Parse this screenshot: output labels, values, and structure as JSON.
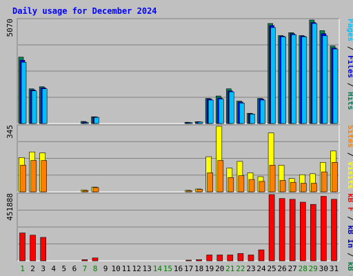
{
  "colors": {
    "outer_bg": "#c0c0c0",
    "panel_bg": "#c0c0c0",
    "title": "#0000ff",
    "hits": "#00805c",
    "files": "#0000ff",
    "pages": "#00c0ff",
    "visits": "#ffff00",
    "sites": "#ff8000",
    "kb_out": "#008040",
    "kb_in": "#0000c0",
    "kb_f": "#ff0000",
    "weekend_label": "#008000",
    "weekday_label": "#000000"
  },
  "chart_data": {
    "type": "bar",
    "title": "Daily usage for December 2024",
    "categories": [
      "1",
      "2",
      "3",
      "4",
      "5",
      "6",
      "7",
      "8",
      "9",
      "10",
      "11",
      "12",
      "13",
      "14",
      "15",
      "16",
      "17",
      "18",
      "19",
      "20",
      "21",
      "22",
      "23",
      "24",
      "25",
      "26",
      "27",
      "28",
      "29",
      "30",
      "31"
    ],
    "weekend_days": [
      "1",
      "7",
      "8",
      "14",
      "15",
      "21",
      "22",
      "28",
      "29"
    ],
    "panels": [
      {
        "id": "top",
        "scale_label": "5070",
        "ylim": [
          0,
          5070
        ],
        "legend": [
          {
            "key": "pages",
            "label": "Pages"
          },
          {
            "key": "sep",
            "label": " / "
          },
          {
            "key": "files",
            "label": "Files"
          },
          {
            "key": "sep",
            "label": " / "
          },
          {
            "key": "hits",
            "label": "Hits"
          }
        ],
        "series": [
          {
            "name": "Hits",
            "key": "hits",
            "values": [
              3250,
              1700,
              1800,
              0,
              0,
              0,
              100,
              330,
              0,
              0,
              0,
              0,
              0,
              0,
              0,
              0,
              60,
              90,
              1230,
              1350,
              1700,
              1100,
              500,
              1230,
              4900,
              4310,
              4450,
              4310,
              5070,
              4550,
              3800
            ]
          },
          {
            "name": "Files",
            "key": "files",
            "values": [
              3100,
              1650,
              1750,
              0,
              0,
              0,
              70,
              320,
              0,
              0,
              0,
              0,
              0,
              0,
              0,
              0,
              50,
              80,
              1200,
              1250,
              1600,
              1050,
              480,
              1200,
              4800,
              4280,
              4400,
              4280,
              4950,
              4400,
              3700
            ]
          },
          {
            "name": "Pages",
            "key": "pages",
            "values": [
              3000,
              1600,
              1700,
              0,
              0,
              0,
              40,
              300,
              0,
              0,
              0,
              0,
              0,
              0,
              0,
              0,
              40,
              70,
              1150,
              1200,
              1550,
              1000,
              460,
              1150,
              4700,
              4250,
              4350,
              4250,
              4900,
              4300,
              3650
            ]
          }
        ]
      },
      {
        "id": "middle",
        "scale_label": "345",
        "ylim": [
          0,
          345
        ],
        "legend": [
          {
            "key": "sites",
            "label": "Sites"
          },
          {
            "key": "sep",
            "label": " / "
          },
          {
            "key": "visits",
            "label": "Visits"
          }
        ],
        "series": [
          {
            "name": "Visits",
            "key": "visits",
            "values": [
              180,
              210,
              205,
              0,
              0,
              0,
              10,
              25,
              0,
              0,
              0,
              0,
              0,
              0,
              0,
              0,
              8,
              15,
              185,
              345,
              125,
              160,
              100,
              80,
              310,
              140,
              70,
              90,
              95,
              155,
              215
            ]
          },
          {
            "name": "Sites",
            "key": "sites",
            "values": [
              140,
              165,
              165,
              0,
              0,
              0,
              6,
              22,
              0,
              0,
              0,
              0,
              0,
              0,
              0,
              0,
              5,
              13,
              100,
              165,
              75,
              85,
              65,
              55,
              140,
              60,
              50,
              45,
              45,
              105,
              155
            ]
          }
        ]
      },
      {
        "id": "bottom",
        "scale_label": "451888",
        "ylim": [
          0,
          451888
        ],
        "legend": [
          {
            "key": "kb_f",
            "label": "kB F"
          },
          {
            "key": "sep",
            "label": " / "
          },
          {
            "key": "kb_in",
            "label": "kB In"
          },
          {
            "key": "sep",
            "label": " / "
          },
          {
            "key": "kb_out",
            "label": "kB Out"
          }
        ],
        "series": [
          {
            "name": "kB F",
            "key": "kb_f",
            "values": [
              190000,
              175000,
              160000,
              0,
              0,
              0,
              8000,
              20000,
              0,
              0,
              0,
              0,
              0,
              0,
              0,
              0,
              4000,
              8000,
              40000,
              40000,
              40000,
              50000,
              40000,
              75000,
              451888,
              425000,
              420000,
              400000,
              385000,
              440000,
              420000
            ]
          }
        ]
      }
    ]
  }
}
